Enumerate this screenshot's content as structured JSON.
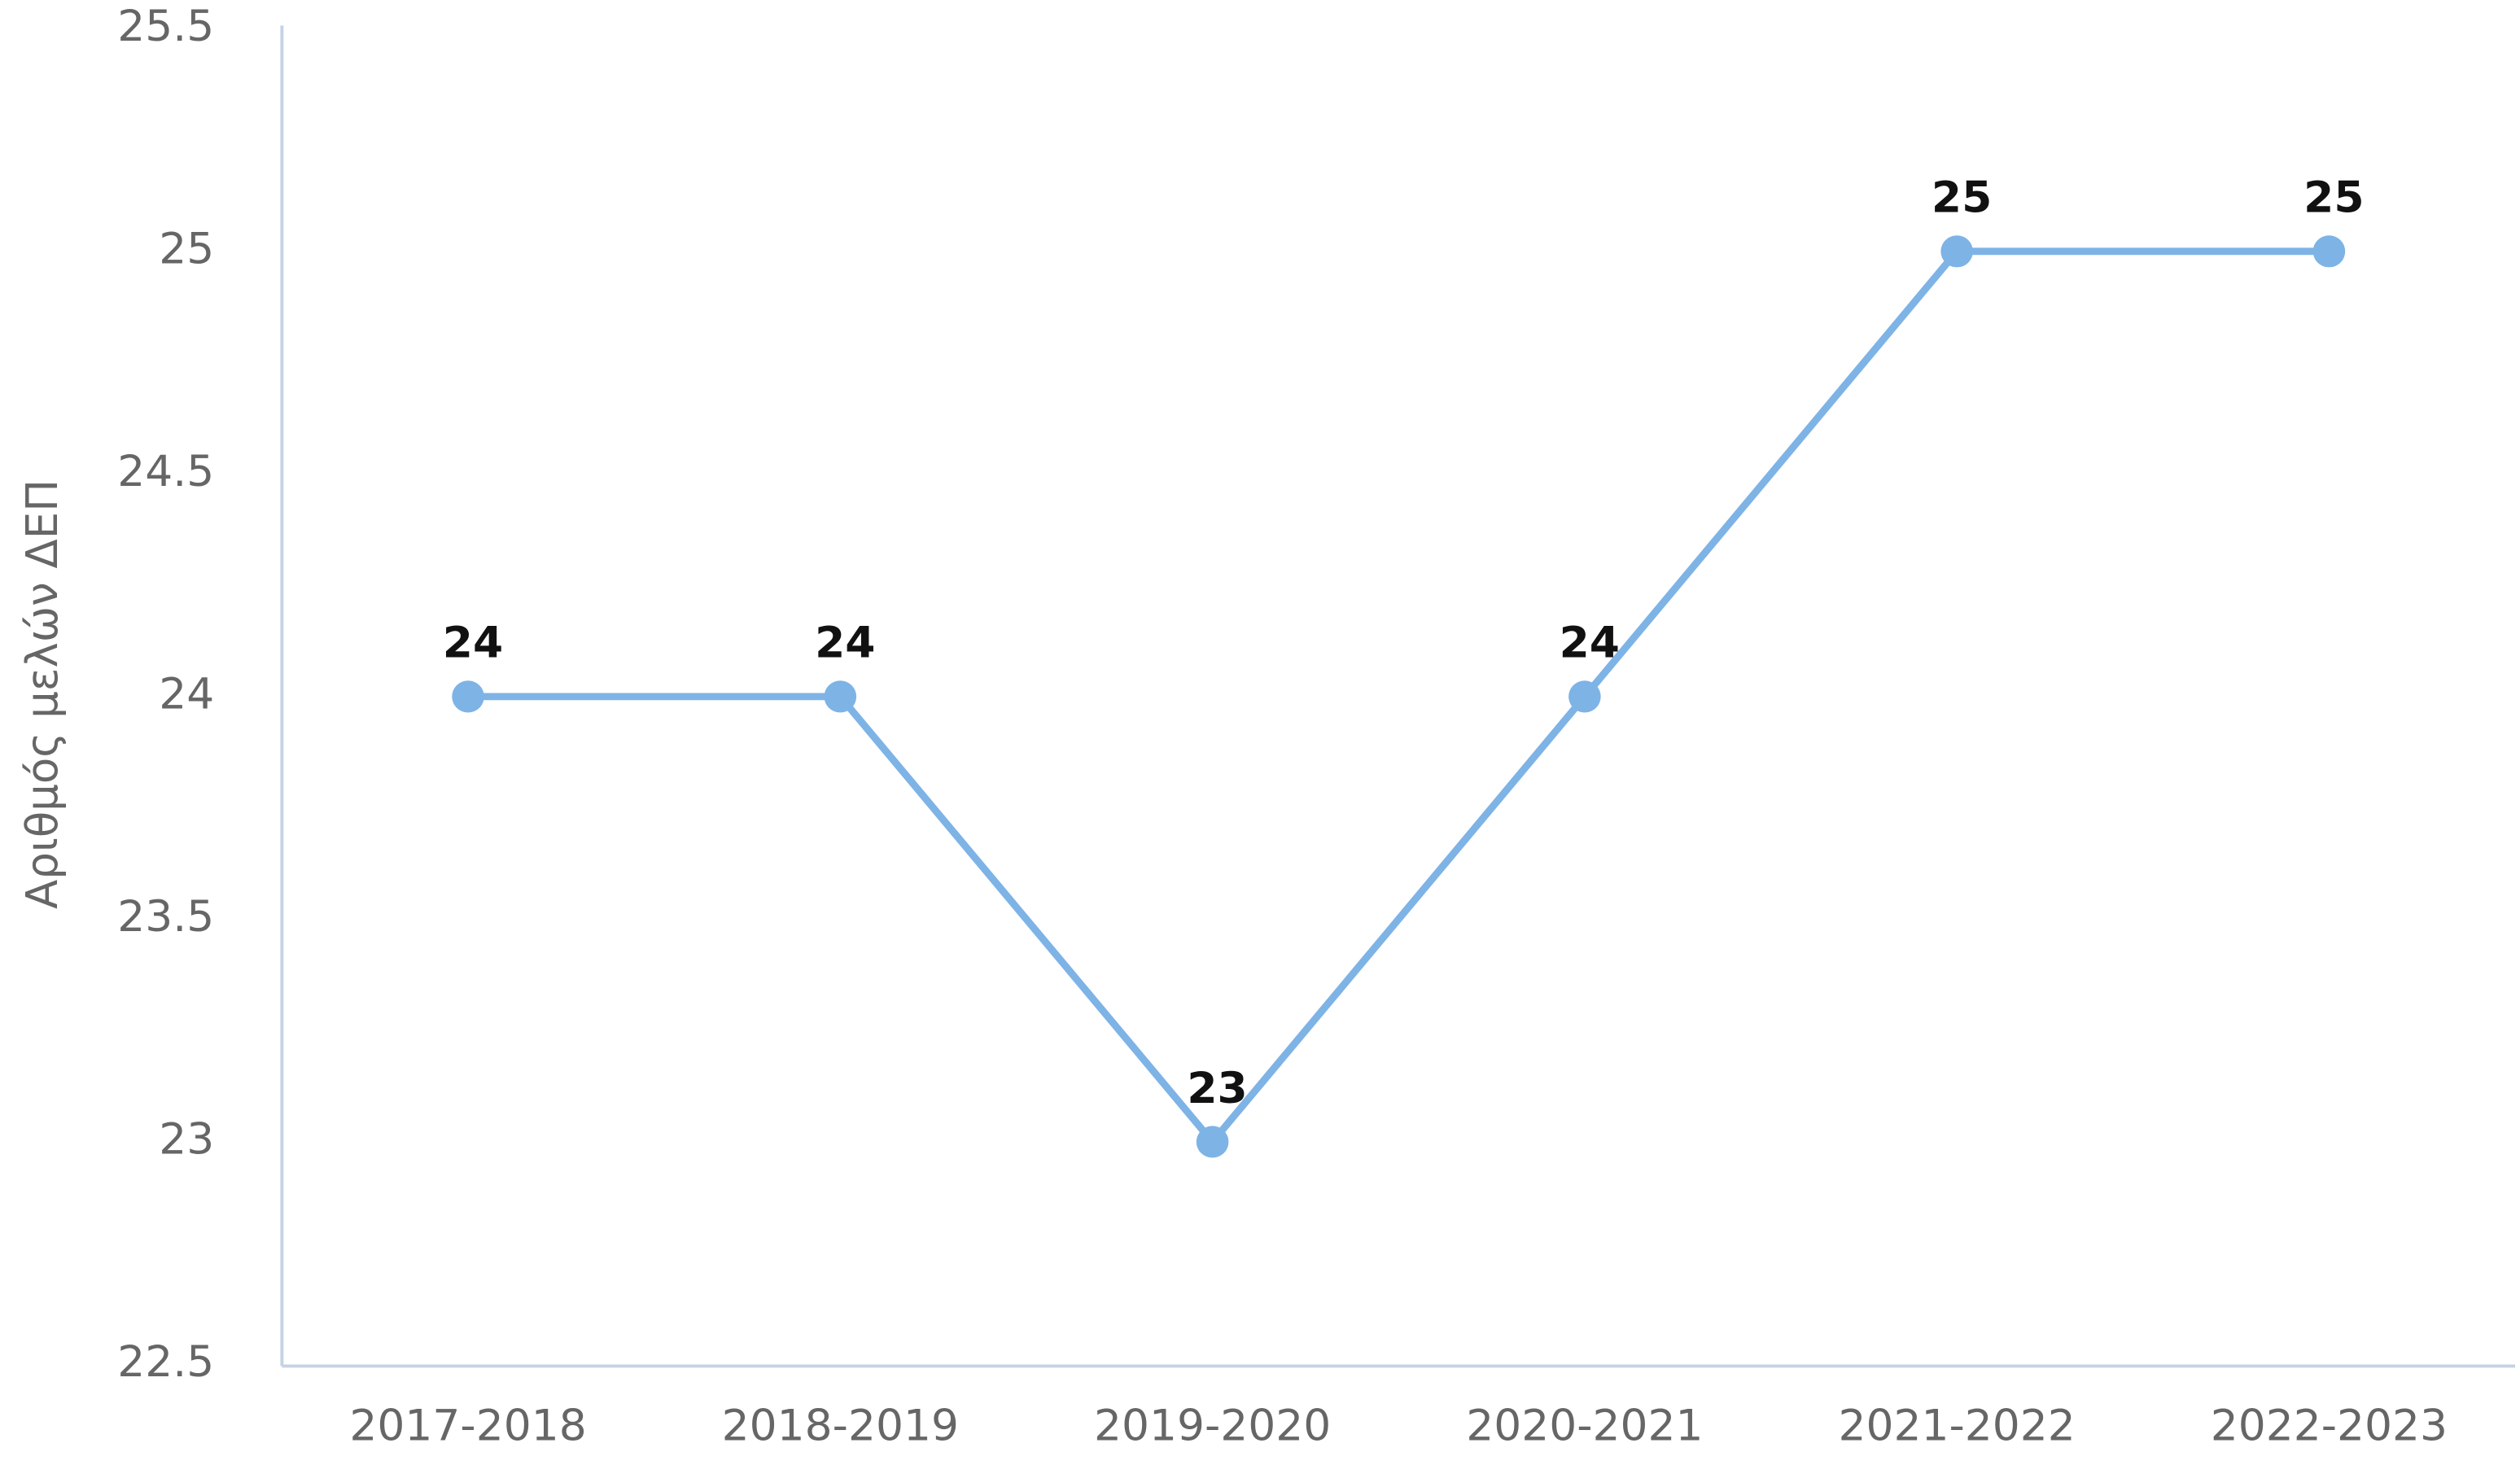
{
  "chart_data": {
    "type": "line",
    "y_label": "Αριθμός μελών ΔΕΠ",
    "categories": [
      "2017-2018",
      "2018-2019",
      "2019-2020",
      "2020-2021",
      "2021-2022",
      "2022-2023"
    ],
    "values": [
      24,
      24,
      23,
      24,
      25,
      25
    ],
    "color": "#7eb3e6",
    "ylim": [
      22.5,
      25.5
    ],
    "yticks": [
      22.5,
      23,
      23.5,
      24,
      24.5,
      25,
      25.5
    ],
    "grid": false
  }
}
